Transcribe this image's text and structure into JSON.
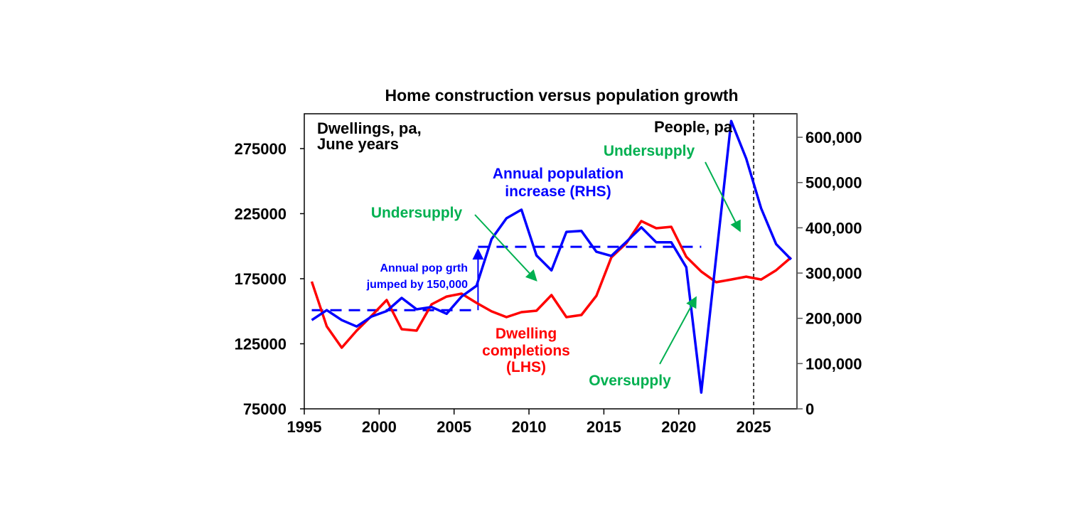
{
  "chart_data": {
    "type": "line",
    "title": "Home construction versus population growth",
    "left_axis_label": [
      "Dwellings, pa,",
      "June years"
    ],
    "right_axis_label": "People, pa",
    "x_ticks": [
      1995,
      2000,
      2005,
      2010,
      2015,
      2020,
      2025
    ],
    "xlim": [
      1995,
      2028
    ],
    "left_ylim": [
      75000,
      300000
    ],
    "left_ticks": [
      "75000",
      "125000",
      "175000",
      "225000",
      "275000"
    ],
    "left_tick_values": [
      75000,
      125000,
      175000,
      225000,
      275000
    ],
    "right_ylim": [
      0,
      660000
    ],
    "right_ticks": [
      "0",
      "100,000",
      "200,000",
      "300,000",
      "400,000",
      "500,000",
      "600,000"
    ],
    "right_tick_values": [
      0,
      100000,
      200000,
      300000,
      400000,
      500000,
      600000
    ],
    "grid": false,
    "x": [
      1995.5,
      1996.5,
      1997.5,
      1998.5,
      1999.5,
      2000.5,
      2001.5,
      2002.5,
      2003.5,
      2004.5,
      2005.5,
      2006.5,
      2007.5,
      2008.5,
      2009.5,
      2010.5,
      2011.5,
      2012.5,
      2013.5,
      2014.5,
      2015.5,
      2016.5,
      2017.5,
      2018.5,
      2019.5,
      2020.5,
      2021.5,
      2022.5,
      2023.5,
      2024.5,
      2025.5,
      2026.5,
      2027.5
    ],
    "series": [
      {
        "name": "Dwelling completions (LHS)",
        "axis": "left",
        "color": "#ff0000",
        "values": [
          172800,
          138400,
          122000,
          135100,
          146600,
          158600,
          136200,
          135100,
          155300,
          161300,
          163500,
          156400,
          149900,
          145500,
          149300,
          150400,
          162400,
          145500,
          147100,
          161900,
          191400,
          202300,
          219300,
          213800,
          214900,
          191900,
          180500,
          172300,
          174400,
          176600,
          174400,
          181500,
          191400
        ]
      },
      {
        "name": "Annual population increase (RHS)",
        "axis": "right",
        "color": "#0000ff",
        "values": [
          196000,
          218000,
          196000,
          182000,
          204000,
          216000,
          245000,
          220000,
          225000,
          210000,
          248000,
          272000,
          375000,
          421000,
          440000,
          339000,
          306000,
          391000,
          393000,
          347000,
          338000,
          369000,
          401000,
          368000,
          368000,
          313000,
          36000,
          336000,
          636000,
          553000,
          443000,
          364000,
          330000
        ]
      }
    ],
    "reference_lines": [
      {
        "type": "dashed-horizontal",
        "axis": "right",
        "value": 218000,
        "from": 1995.5,
        "to": 2006.6,
        "color": "#0000ff"
      },
      {
        "type": "dashed-horizontal",
        "axis": "right",
        "value": 358000,
        "from": 2006.6,
        "to": 2021.5,
        "color": "#0000ff"
      },
      {
        "type": "dashed-vertical",
        "x": 2025,
        "color": "#000000"
      }
    ],
    "annotations": {
      "pop_jump": [
        "Annual pop grth",
        "jumped by 150,000"
      ],
      "pop_label": [
        "Annual population",
        "increase (RHS)"
      ],
      "dwell_label": [
        "Dwelling",
        "completions",
        "(LHS)"
      ],
      "undersupply_1": "Undersupply",
      "undersupply_2": "Undersupply",
      "oversupply": "Oversupply"
    },
    "colors": {
      "dwellings": "#ff0000",
      "population": "#0000ff",
      "annotation": "#00b050",
      "axis": "#000000"
    }
  }
}
